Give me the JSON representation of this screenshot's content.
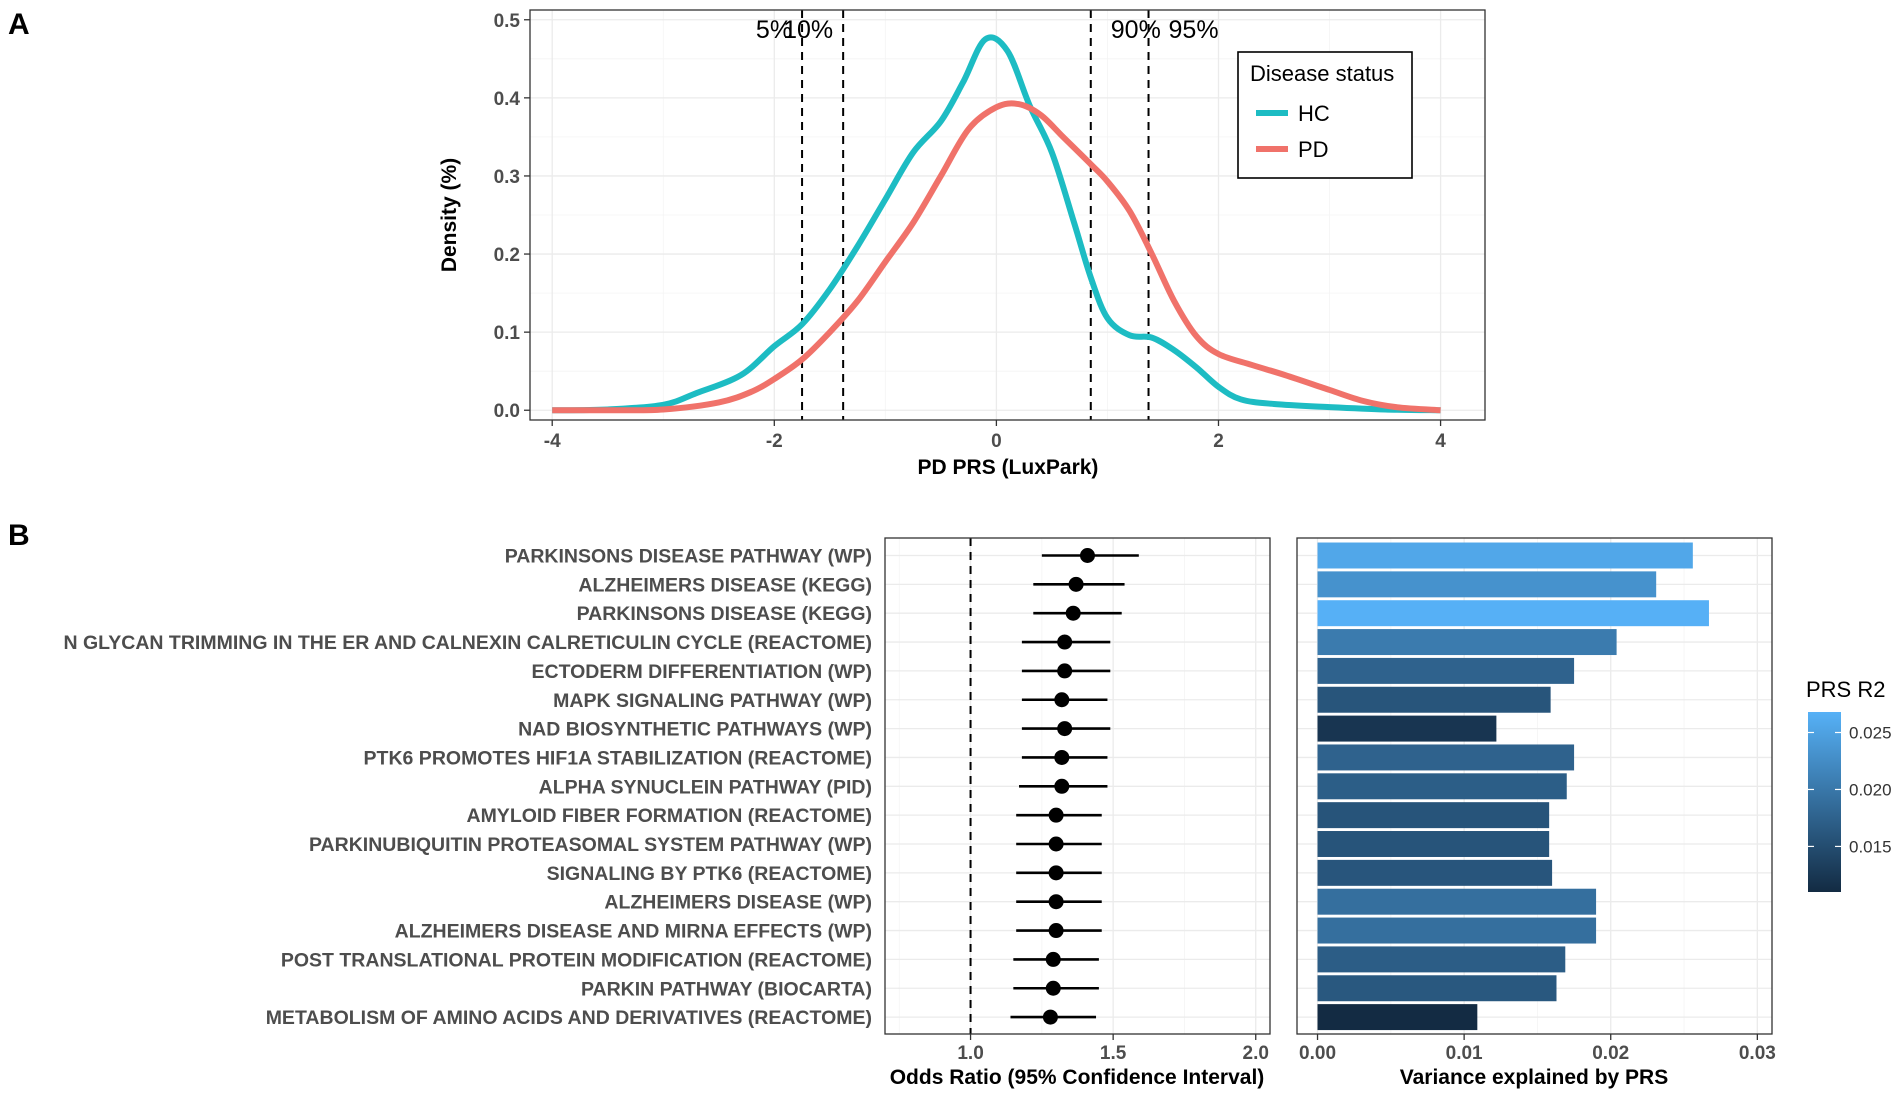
{
  "chart_data": [
    {
      "panel": "A",
      "type": "line",
      "xlabel": "PD PRS (LuxPark)",
      "ylabel": "Density (%)",
      "xlim": [
        -4.2,
        4.4
      ],
      "ylim": [
        -0.0125,
        0.5125
      ],
      "xticks": [
        {
          "v": -4,
          "label": "-4"
        },
        {
          "v": -2,
          "label": "-2"
        },
        {
          "v": 0,
          "label": "0"
        },
        {
          "v": 2,
          "label": "2"
        },
        {
          "v": 4,
          "label": "4"
        }
      ],
      "yticks": [
        {
          "v": 0,
          "label": "0.0"
        },
        {
          "v": 0.1,
          "label": "0.1"
        },
        {
          "v": 0.2,
          "label": "0.2"
        },
        {
          "v": 0.3,
          "label": "0.3"
        },
        {
          "v": 0.4,
          "label": "0.4"
        },
        {
          "v": 0.5,
          "label": "0.5"
        }
      ],
      "legend": {
        "title": "Disease status",
        "position": "top-right"
      },
      "series": [
        {
          "name": "HC",
          "color": "#1dbcc3",
          "x": [
            -4.0,
            -3.5,
            -3.0,
            -2.7,
            -2.3,
            -2.0,
            -1.75,
            -1.5,
            -1.25,
            -1.0,
            -0.75,
            -0.5,
            -0.3,
            -0.1,
            0.1,
            0.3,
            0.5,
            0.7,
            0.85,
            1.0,
            1.2,
            1.4,
            1.6,
            1.8,
            2.0,
            2.2,
            2.5,
            3.0,
            3.5,
            4.0
          ],
          "y": [
            0.0,
            0.001,
            0.007,
            0.022,
            0.045,
            0.082,
            0.11,
            0.155,
            0.21,
            0.27,
            0.33,
            0.37,
            0.42,
            0.475,
            0.46,
            0.39,
            0.33,
            0.24,
            0.17,
            0.118,
            0.096,
            0.093,
            0.077,
            0.055,
            0.03,
            0.014,
            0.008,
            0.004,
            0.001,
            0.0
          ]
        },
        {
          "name": "PD",
          "color": "#f0726a",
          "x": [
            -4.0,
            -3.5,
            -3.0,
            -2.5,
            -2.2,
            -2.0,
            -1.75,
            -1.5,
            -1.25,
            -1.0,
            -0.75,
            -0.5,
            -0.25,
            0.0,
            0.2,
            0.4,
            0.6,
            0.85,
            1.0,
            1.2,
            1.4,
            1.6,
            1.8,
            2.0,
            2.3,
            2.6,
            3.0,
            3.3,
            3.6,
            4.0
          ],
          "y": [
            0.0,
            0.0,
            0.001,
            0.01,
            0.024,
            0.04,
            0.065,
            0.1,
            0.14,
            0.19,
            0.24,
            0.3,
            0.36,
            0.388,
            0.392,
            0.378,
            0.35,
            0.315,
            0.293,
            0.255,
            0.2,
            0.14,
            0.095,
            0.072,
            0.058,
            0.045,
            0.026,
            0.012,
            0.004,
            0.0
          ]
        }
      ],
      "vlines": [
        {
          "x": -1.75,
          "label": "5%"
        },
        {
          "x": -1.38,
          "label": "10%"
        },
        {
          "x": 0.85,
          "label": "90%"
        },
        {
          "x": 1.37,
          "label": "95%"
        }
      ]
    },
    {
      "panel": "B",
      "type": "scatter",
      "subtype": "forest",
      "xlabel": "Odds Ratio (95% Confidence Interval)",
      "xlim": [
        0.7,
        2.05
      ],
      "reference_line": 1.0,
      "xticks": [
        {
          "v": 1.0,
          "label": "1.0"
        },
        {
          "v": 1.5,
          "label": "1.5"
        },
        {
          "v": 2.0,
          "label": "2.0"
        }
      ],
      "categories": [
        "PARKINSONS DISEASE PATHWAY (WP)",
        "ALZHEIMERS DISEASE (KEGG)",
        "PARKINSONS DISEASE (KEGG)",
        "N GLYCAN TRIMMING IN THE ER AND CALNEXIN CALRETICULIN CYCLE (REACTOME)",
        "ECTODERM DIFFERENTIATION (WP)",
        "MAPK SIGNALING PATHWAY (WP)",
        "NAD BIOSYNTHETIC PATHWAYS (WP)",
        "PTK6 PROMOTES HIF1A STABILIZATION (REACTOME)",
        "ALPHA SYNUCLEIN PATHWAY (PID)",
        "AMYLOID FIBER FORMATION (REACTOME)",
        "PARKINUBIQUITIN PROTEASOMAL SYSTEM PATHWAY (WP)",
        "SIGNALING BY PTK6 (REACTOME)",
        "ALZHEIMERS DISEASE (WP)",
        "ALZHEIMERS DISEASE AND MIRNA EFFECTS (WP)",
        "POST TRANSLATIONAL PROTEIN MODIFICATION (REACTOME)",
        "PARKIN PATHWAY (BIOCARTA)",
        "METABOLISM OF AMINO ACIDS AND DERIVATIVES (REACTOME)"
      ],
      "or": [
        1.41,
        1.37,
        1.36,
        1.33,
        1.33,
        1.32,
        1.33,
        1.32,
        1.32,
        1.3,
        1.3,
        1.3,
        1.3,
        1.3,
        1.29,
        1.29,
        1.28
      ],
      "ci_low": [
        1.25,
        1.22,
        1.22,
        1.18,
        1.18,
        1.18,
        1.18,
        1.18,
        1.17,
        1.16,
        1.16,
        1.16,
        1.16,
        1.16,
        1.15,
        1.15,
        1.14
      ],
      "ci_high": [
        1.59,
        1.54,
        1.53,
        1.49,
        1.49,
        1.48,
        1.49,
        1.48,
        1.48,
        1.46,
        1.46,
        1.46,
        1.46,
        1.46,
        1.45,
        1.45,
        1.44
      ]
    },
    {
      "panel": "B",
      "type": "bar",
      "orientation": "horizontal",
      "xlabel": "Variance explained by PRS",
      "xlim": [
        -0.0014,
        0.031
      ],
      "xticks": [
        {
          "v": 0.0,
          "label": "0.00"
        },
        {
          "v": 0.01,
          "label": "0.01"
        },
        {
          "v": 0.02,
          "label": "0.02"
        },
        {
          "v": 0.03,
          "label": "0.03"
        }
      ],
      "values": [
        0.0256,
        0.0231,
        0.0267,
        0.0204,
        0.0175,
        0.0159,
        0.0122,
        0.0175,
        0.017,
        0.0158,
        0.0158,
        0.016,
        0.019,
        0.019,
        0.0169,
        0.0163,
        0.0109
      ],
      "color_scale": {
        "title": "PRS R2",
        "min": 0.011,
        "max": 0.0268,
        "low_color": "#132b43",
        "high_color": "#56b1f7",
        "ticks": [
          {
            "v": 0.015,
            "label": "0.015"
          },
          {
            "v": 0.02,
            "label": "0.020"
          },
          {
            "v": 0.025,
            "label": "0.025"
          }
        ]
      }
    }
  ]
}
